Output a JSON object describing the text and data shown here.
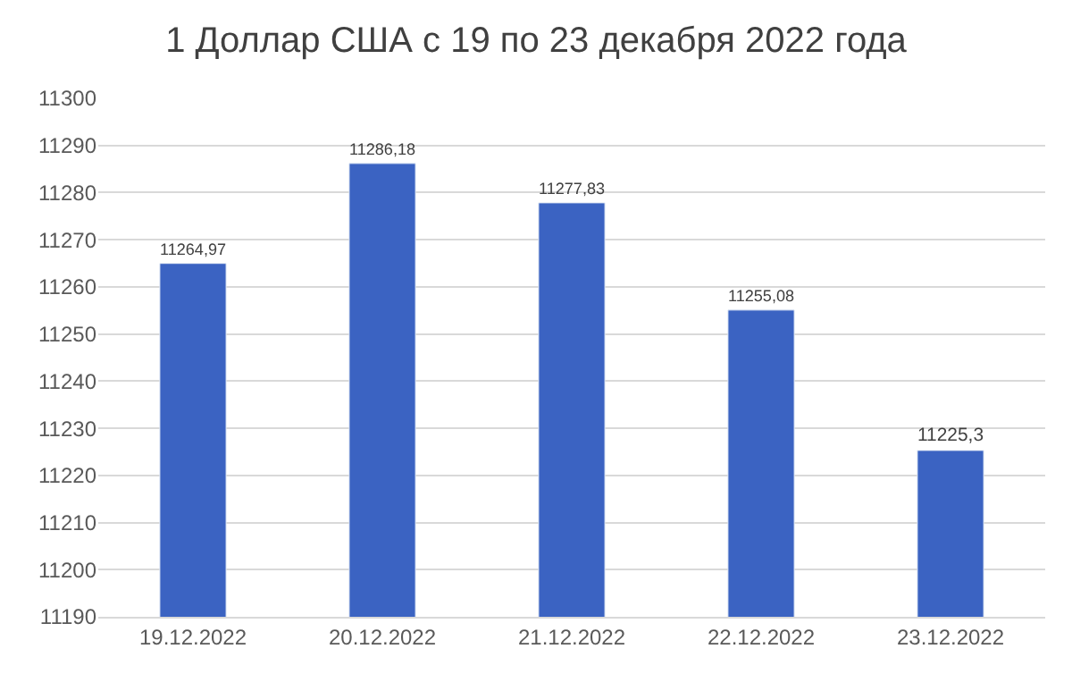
{
  "chart_data": {
    "type": "bar",
    "title": "1 Доллар США с 19 по 23 декабря 2022 года",
    "categories": [
      "19.12.2022",
      "20.12.2022",
      "21.12.2022",
      "22.12.2022",
      "23.12.2022"
    ],
    "values": [
      11264.97,
      11286.18,
      11277.83,
      11255.08,
      11225.3
    ],
    "value_labels": [
      "11264,97",
      "11286,18",
      "11277,83",
      "11255,08",
      "11225,3"
    ],
    "color": "#3b63c2",
    "ylim": [
      11190,
      11300
    ],
    "yticks": [
      11190,
      11200,
      11210,
      11220,
      11230,
      11240,
      11250,
      11260,
      11270,
      11280,
      11290,
      11300
    ],
    "grid": "y",
    "legend": false
  }
}
